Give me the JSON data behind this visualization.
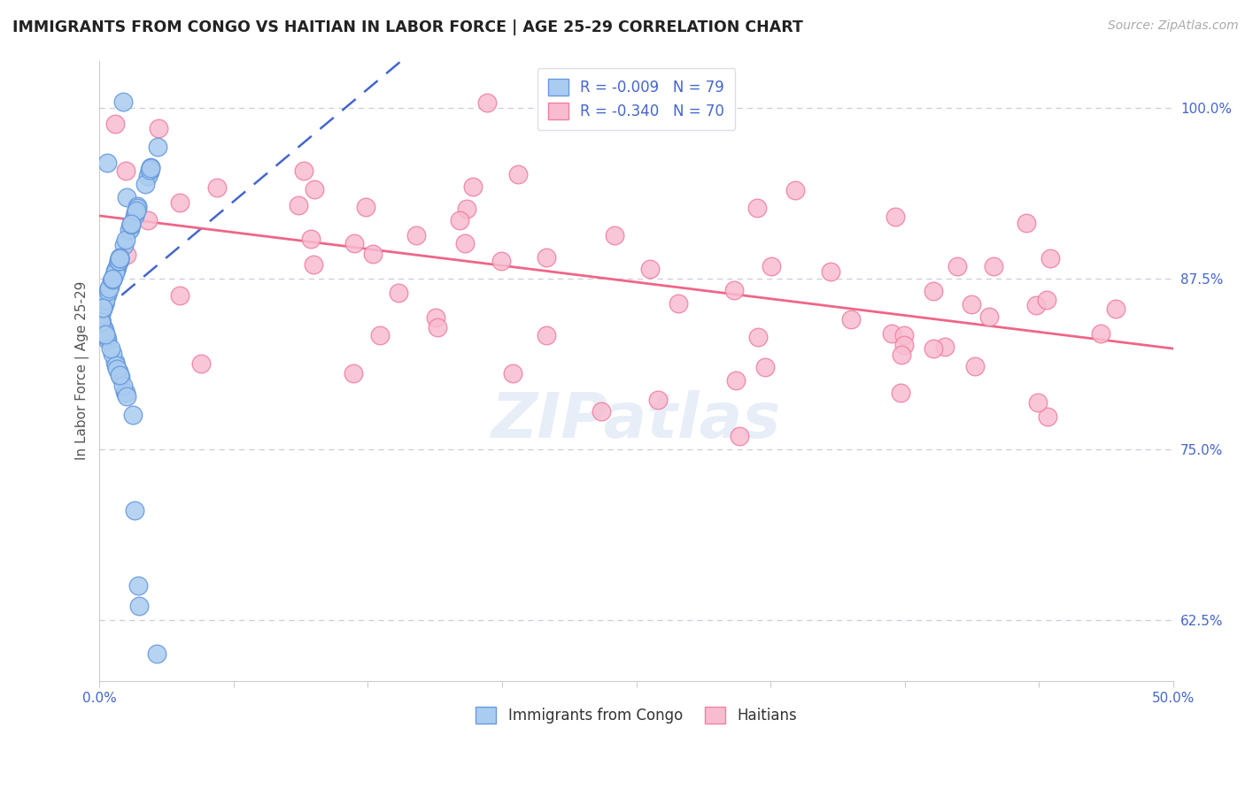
{
  "title": "IMMIGRANTS FROM CONGO VS HAITIAN IN LABOR FORCE | AGE 25-29 CORRELATION CHART",
  "source": "Source: ZipAtlas.com",
  "ylabel": "In Labor Force | Age 25-29",
  "y_ticks": [
    62.5,
    75.0,
    87.5,
    100.0
  ],
  "y_tick_labels": [
    "62.5%",
    "75.0%",
    "87.5%",
    "100.0%"
  ],
  "xlim": [
    0.0,
    50.0
  ],
  "ylim": [
    58.0,
    103.5
  ],
  "congo_R": -0.009,
  "congo_N": 79,
  "haitian_R": -0.34,
  "haitian_N": 70,
  "legend_label_congo": "Immigrants from Congo",
  "legend_label_haitian": "Haitians",
  "congo_fill": "#aaccf0",
  "haitian_fill": "#f8bcd0",
  "congo_edge": "#6699dd",
  "haitian_edge": "#f080a0",
  "congo_line_color": "#4466cc",
  "haitian_line_color": "#ee6688",
  "background_color": "#ffffff",
  "grid_color": "#ccccdd",
  "title_color": "#222222",
  "source_color": "#aaaaaa",
  "tick_label_color": "#4466cc",
  "legend_text_color": "#4466cc",
  "bottom_legend_text_color": "#333333",
  "watermark_color": "#e8eef8",
  "x_tick_positions": [
    0,
    6.25,
    12.5,
    18.75,
    25,
    31.25,
    37.5,
    43.75,
    50
  ]
}
